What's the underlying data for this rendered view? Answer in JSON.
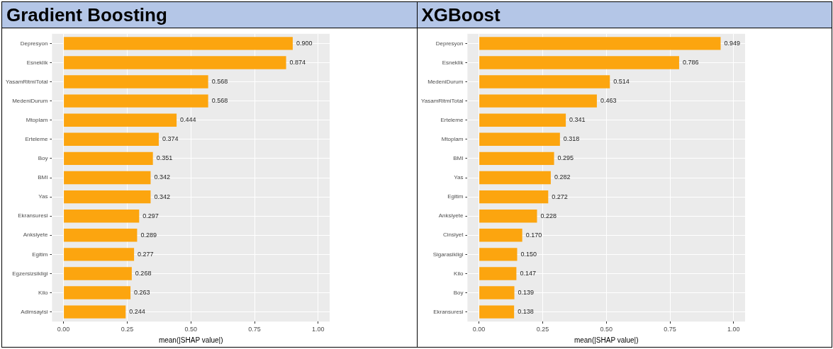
{
  "chart_data": [
    {
      "type": "bar",
      "orientation": "horizontal",
      "title": "Gradient Boosting",
      "xlabel": "mean(|SHAP value|)",
      "categories": [
        "Depresyon",
        "Esneklik",
        "YasamRitmiTotal",
        "MedeniDurum",
        "Mtoplam",
        "Erteleme",
        "Boy",
        "BMI",
        "Yas",
        "Ekransuresi",
        "Anksiyete",
        "Egitim",
        "Egzersizsikligi",
        "Kilo",
        "Adimsayisi"
      ],
      "values": [
        0.9,
        0.874,
        0.568,
        0.568,
        0.444,
        0.374,
        0.351,
        0.342,
        0.342,
        0.297,
        0.289,
        0.277,
        0.268,
        0.263,
        0.244
      ],
      "value_labels": [
        "0.900",
        "0.874",
        "0.568",
        "0.568",
        "0.444",
        "0.374",
        "0.351",
        "0.342",
        "0.342",
        "0.297",
        "0.289",
        "0.277",
        "0.268",
        "0.263",
        "0.244"
      ],
      "color": "#fca50f",
      "xlim": [
        -0.045,
        1.045
      ],
      "xticks": [
        {
          "value": 0,
          "label": "0.00"
        },
        {
          "value": 0.25,
          "label": "0.25"
        },
        {
          "value": 0.5,
          "label": "0.50"
        },
        {
          "value": 0.75,
          "label": "0.75"
        },
        {
          "value": 1,
          "label": "1.00"
        }
      ],
      "grid": true
    },
    {
      "type": "bar",
      "orientation": "horizontal",
      "title": "XGBoost",
      "xlabel": "mean(|SHAP value|)",
      "categories": [
        "Depresyon",
        "Esneklik",
        "MedeniDurum",
        "YasamRitmiTotal",
        "Erteleme",
        "Mtoplam",
        "BMI",
        "Yas",
        "Egitim",
        "Anksiyete",
        "Cinsiyet",
        "Sigarasikligi",
        "Kilo",
        "Boy",
        "Ekransuresi"
      ],
      "values": [
        0.949,
        0.786,
        0.514,
        0.463,
        0.341,
        0.318,
        0.295,
        0.282,
        0.272,
        0.228,
        0.17,
        0.15,
        0.147,
        0.139,
        0.138
      ],
      "value_labels": [
        "0.949",
        "0.786",
        "0.514",
        "0.463",
        "0.341",
        "0.318",
        "0.295",
        "0.282",
        "0.272",
        "0.228",
        "0.170",
        "0.150",
        "0.147",
        "0.139",
        "0.138"
      ],
      "color": "#fca50f",
      "xlim": [
        -0.045,
        1.045
      ],
      "xticks": [
        {
          "value": 0,
          "label": "0.00"
        },
        {
          "value": 0.25,
          "label": "0.25"
        },
        {
          "value": 0.5,
          "label": "0.50"
        },
        {
          "value": 0.75,
          "label": "0.75"
        },
        {
          "value": 1,
          "label": "1.00"
        }
      ],
      "grid": true
    }
  ]
}
